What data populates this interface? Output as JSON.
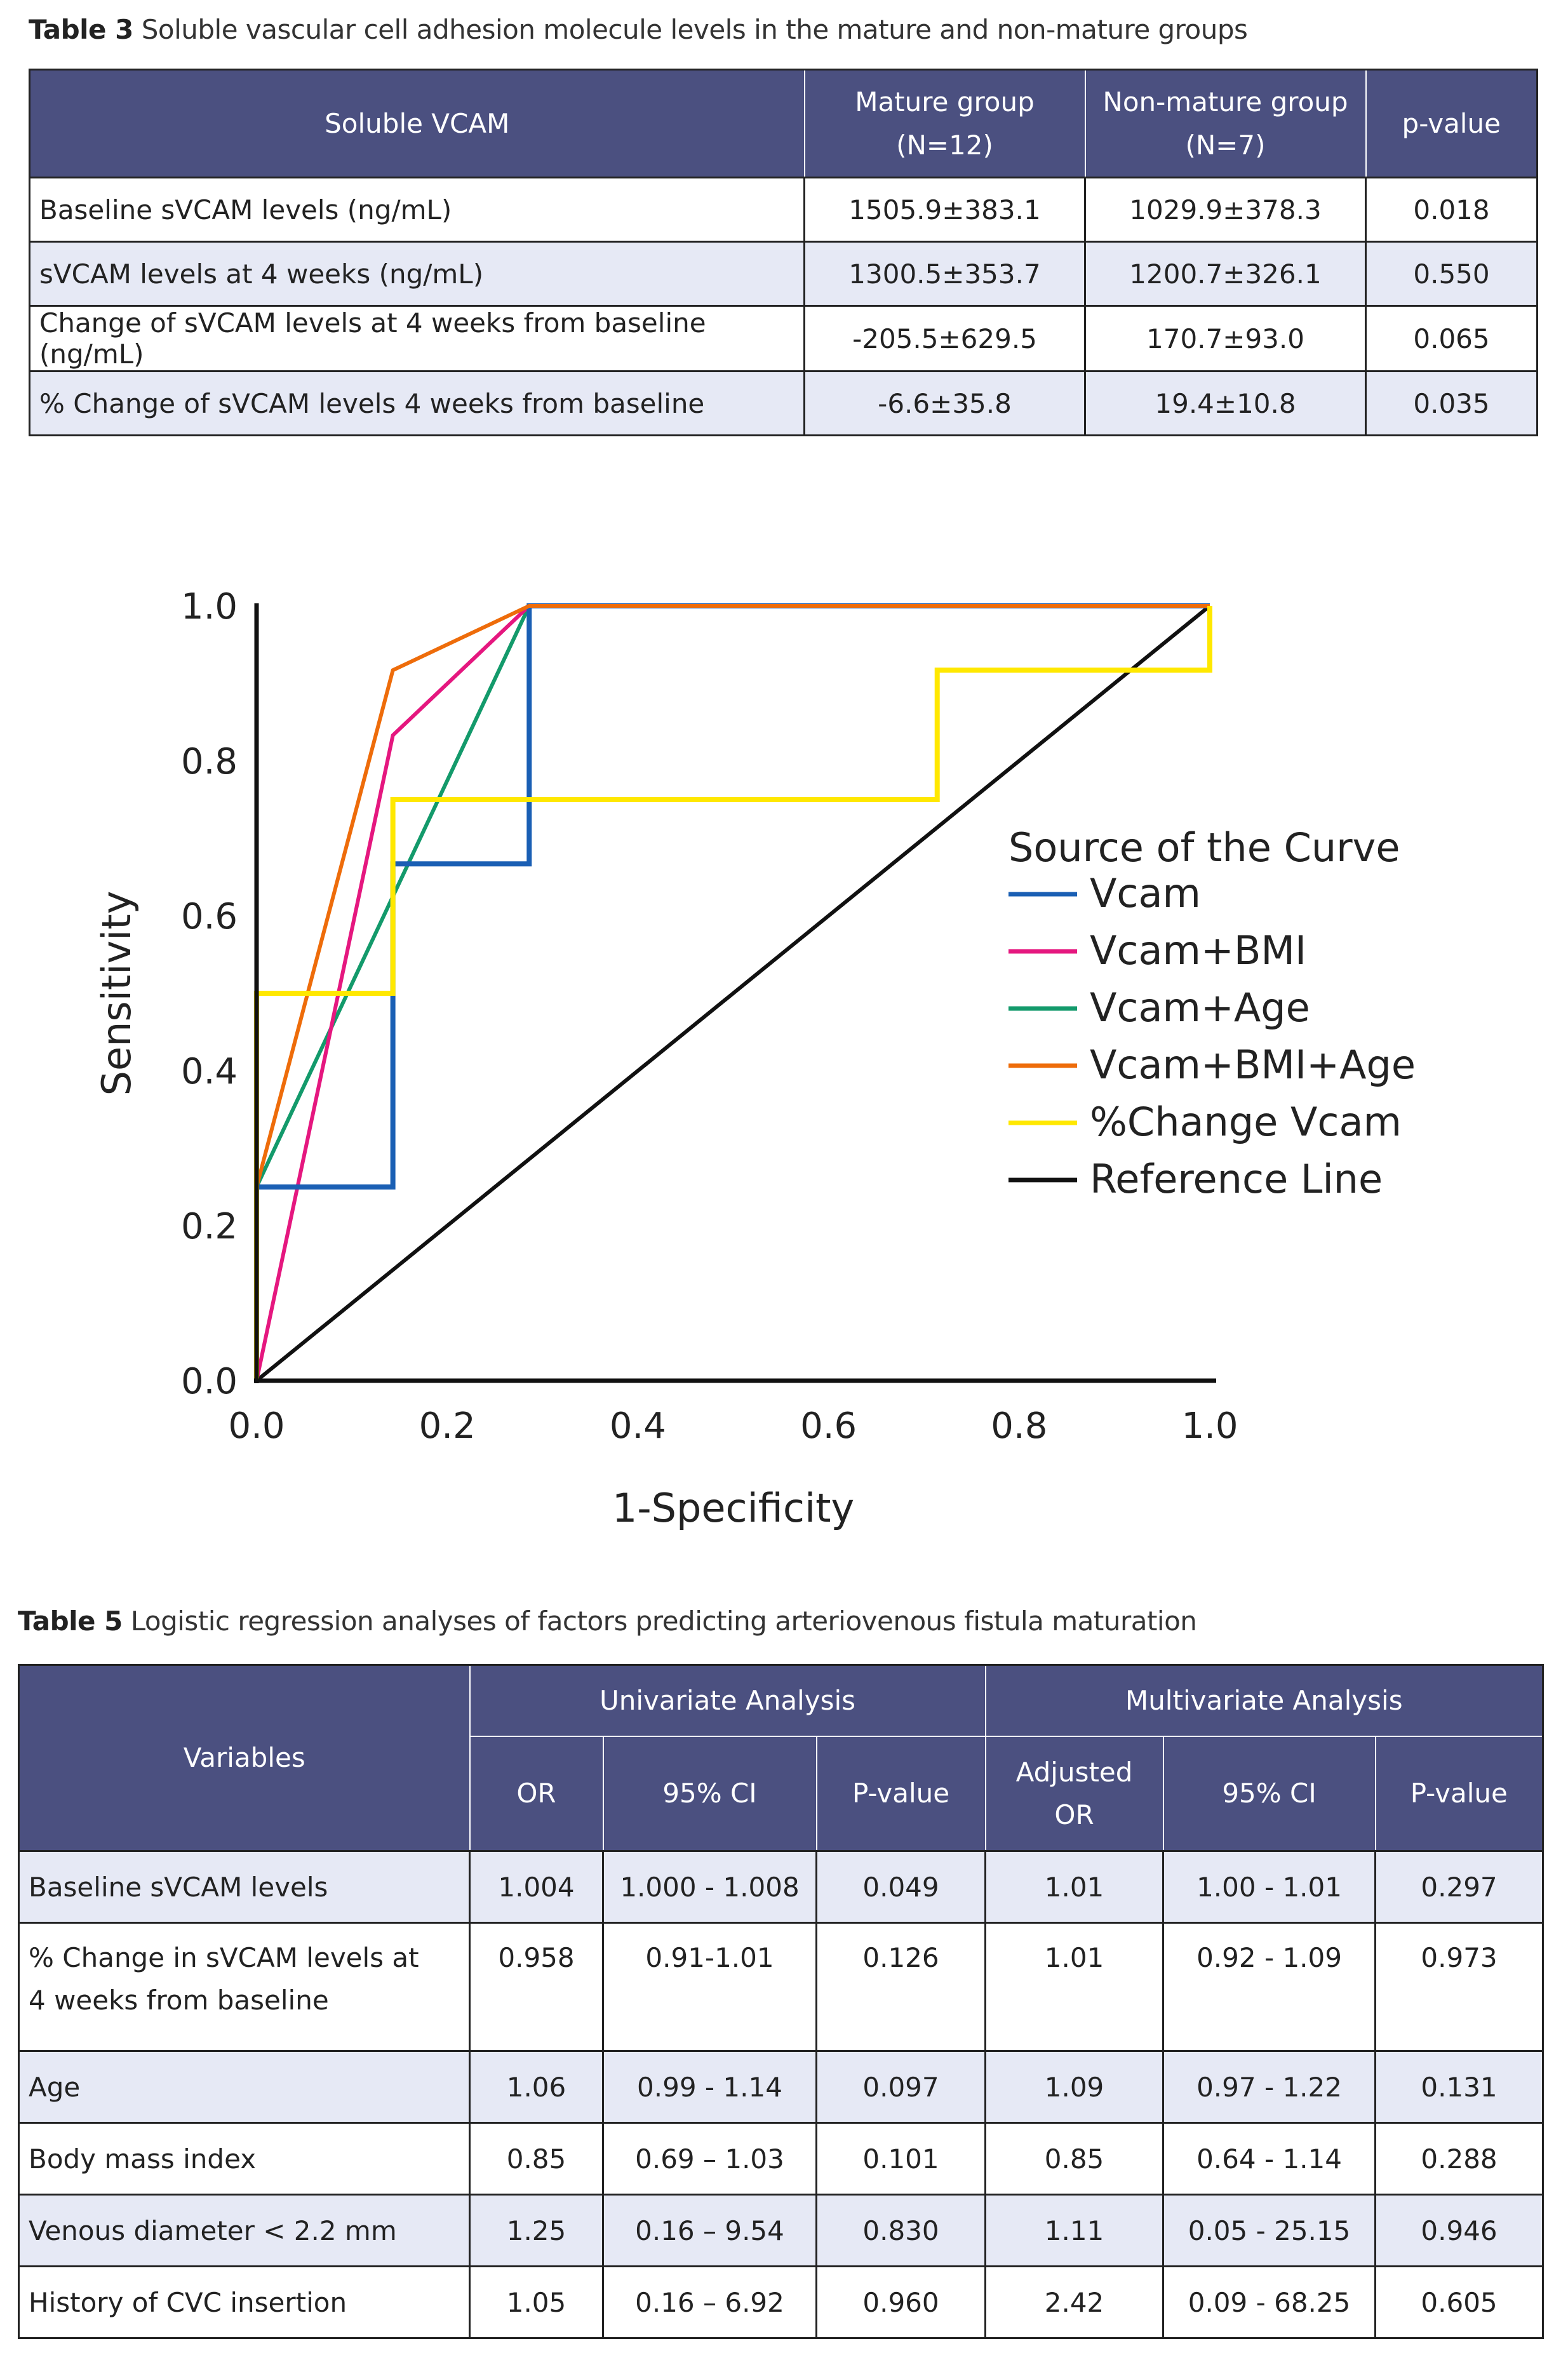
{
  "table3": {
    "caption_label": "Table 3",
    "caption_text": " Soluble vascular cell adhesion molecule levels in the mature and non-mature groups",
    "headers": [
      {
        "line1": "Soluble VCAM",
        "line2": ""
      },
      {
        "line1": "Mature group",
        "line2": "(N=12)"
      },
      {
        "line1": "Non-mature group",
        "line2": "(N=7)"
      },
      {
        "line1": "p-value",
        "line2": ""
      }
    ],
    "rows": [
      {
        "label": "Baseline sVCAM levels (ng/mL)",
        "mature": "1505.9±383.1",
        "nonmature": "1029.9±378.3",
        "p": "0.018"
      },
      {
        "label": "sVCAM levels at 4 weeks (ng/mL)",
        "mature": "1300.5±353.7",
        "nonmature": "1200.7±326.1",
        "p": "0.550"
      },
      {
        "label": "Change of sVCAM levels at 4 weeks from baseline (ng/mL)",
        "mature": "-205.5±629.5",
        "nonmature": "170.7±93.0",
        "p": "0.065"
      },
      {
        "label": "% Change of sVCAM levels 4 weeks from baseline",
        "mature": "-6.6±35.8",
        "nonmature": "19.4±10.8",
        "p": "0.035"
      }
    ]
  },
  "chart_data": {
    "type": "line",
    "title": "",
    "xlabel": "1-Specificity",
    "ylabel": "Sensitivity",
    "xlim": [
      0,
      1
    ],
    "ylim": [
      0,
      1
    ],
    "xticks": [
      "0.0",
      "0.2",
      "0.4",
      "0.6",
      "0.8",
      "1.0"
    ],
    "yticks": [
      "0.0",
      "0.2",
      "0.4",
      "0.6",
      "0.8",
      "1.0"
    ],
    "grid": false,
    "legend_title": "Source of the Curve",
    "legend_position": "right",
    "series": [
      {
        "name": "Vcam",
        "color": "#1a5fb4",
        "x": [
          0,
          0,
          0.143,
          0.143,
          0.143,
          0.286,
          0.286,
          1.0
        ],
        "y": [
          0,
          0.25,
          0.25,
          0.5,
          0.667,
          0.667,
          1.0,
          1.0
        ]
      },
      {
        "name": "Vcam+BMI",
        "color": "#e5177f",
        "x": [
          0,
          0.143,
          0.286,
          1.0
        ],
        "y": [
          0,
          0.833,
          1.0,
          1.0
        ]
      },
      {
        "name": "Vcam+Age",
        "color": "#139a6b",
        "x": [
          0,
          0,
          0.286,
          1.0
        ],
        "y": [
          0,
          0.25,
          1.0,
          1.0
        ]
      },
      {
        "name": "Vcam+BMI+Age",
        "color": "#ee6c0a",
        "x": [
          0,
          0,
          0.143,
          0.286,
          1.0
        ],
        "y": [
          0,
          0.25,
          0.917,
          1.0,
          1.0
        ]
      },
      {
        "name": "%Change Vcam",
        "color": "#ffe800",
        "x": [
          0,
          0,
          0.143,
          0.143,
          0.714,
          0.714,
          1.0,
          1.0
        ],
        "y": [
          0,
          0.5,
          0.5,
          0.75,
          0.75,
          0.917,
          0.917,
          1.0
        ]
      },
      {
        "name": "Reference Line",
        "color": "#111111",
        "x": [
          0,
          1.0
        ],
        "y": [
          0,
          1.0
        ]
      }
    ]
  },
  "table5": {
    "caption_label": "Table 5",
    "caption_text": " Logistic regression analyses of factors predicting arteriovenous fistula maturation",
    "header_variables": "Variables",
    "header_univariate": "Univariate Analysis",
    "header_multivariate": "Multivariate Analysis",
    "sub_headers": [
      {
        "line1": "OR",
        "line2": ""
      },
      {
        "line1": "95% CI",
        "line2": ""
      },
      {
        "line1": "P-value",
        "line2": ""
      },
      {
        "line1": "Adjusted",
        "line2": "OR"
      },
      {
        "line1": "95% CI",
        "line2": ""
      },
      {
        "line1": "P-value",
        "line2": ""
      }
    ],
    "rows": [
      {
        "label1": "Baseline sVCAM levels",
        "label2": "",
        "or": "1.004",
        "ci": "1.000 - 1.008",
        "p": "0.049",
        "aor": "1.01",
        "aci": "1.00 - 1.01",
        "ap": "0.297"
      },
      {
        "label1": "% Change in sVCAM levels at",
        "label2": "4 weeks from baseline",
        "or": "0.958",
        "ci": "0.91-1.01",
        "p": "0.126",
        "aor": "1.01",
        "aci": "0.92 - 1.09",
        "ap": "0.973"
      },
      {
        "label1": "Age",
        "label2": "",
        "or": "1.06",
        "ci": "0.99 - 1.14",
        "p": "0.097",
        "aor": "1.09",
        "aci": "0.97 - 1.22",
        "ap": "0.131"
      },
      {
        "label1": "Body mass index",
        "label2": "",
        "or": "0.85",
        "ci": "0.69 – 1.03",
        "p": "0.101",
        "aor": "0.85",
        "aci": "0.64 - 1.14",
        "ap": "0.288"
      },
      {
        "label1": "Venous diameter < 2.2 mm",
        "label2": "",
        "or": "1.25",
        "ci": "0.16 – 9.54",
        "p": "0.830",
        "aor": "1.11",
        "aci": "0.05 - 25.15",
        "ap": "0.946"
      },
      {
        "label1": "History of CVC insertion",
        "label2": "",
        "or": "1.05",
        "ci": "0.16 – 6.92",
        "p": "0.960",
        "aor": "2.42",
        "aci": "0.09 - 68.25",
        "ap": "0.605"
      }
    ]
  }
}
